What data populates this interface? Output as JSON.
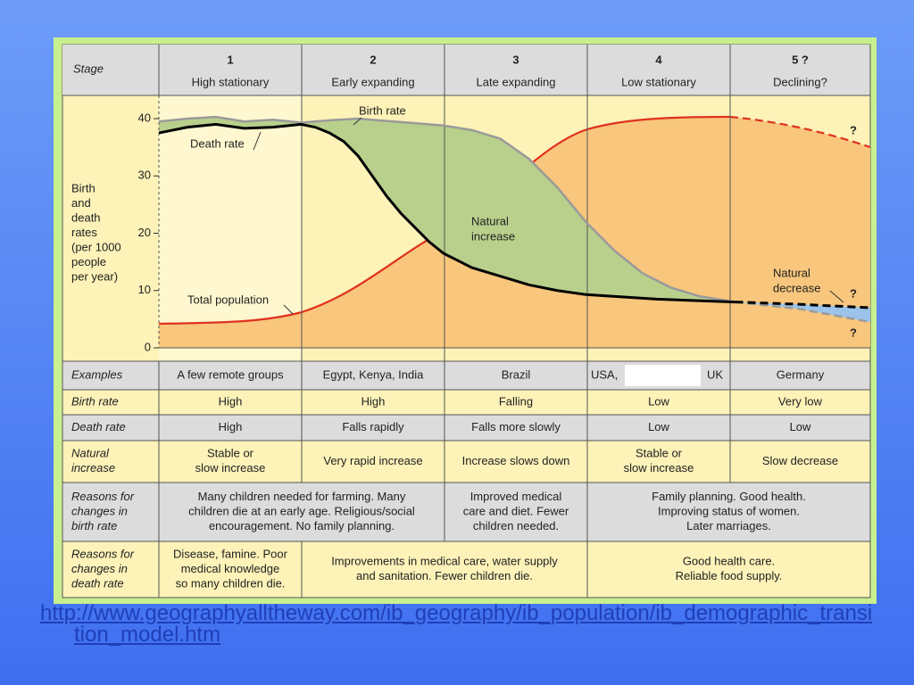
{
  "stage_header": {
    "label": "Stage",
    "stages": [
      {
        "number": "1",
        "name": "High stationary"
      },
      {
        "number": "2",
        "name": "Early expanding"
      },
      {
        "number": "3",
        "name": "Late expanding"
      },
      {
        "number": "4",
        "name": "Low stationary"
      },
      {
        "number": "5 ?",
        "name": "Declining?"
      }
    ]
  },
  "chart_data": {
    "type": "line",
    "y_label_lines": [
      "Birth",
      "and",
      "death",
      "rates",
      "(per 1000",
      "people",
      "per year)"
    ],
    "ylim": [
      0,
      40
    ],
    "yticks": [
      0,
      10,
      20,
      30,
      40
    ],
    "xlim": [
      0,
      5
    ],
    "series": [
      {
        "name": "Birth rate",
        "color": "#9a9a9a",
        "x": [
          0,
          0.2,
          0.4,
          0.6,
          0.8,
          1,
          1.2,
          1.4,
          1.6,
          1.8,
          2,
          2.2,
          2.4,
          2.6,
          2.8,
          3,
          3.2,
          3.4,
          3.6,
          3.8,
          4.05
        ],
        "values": [
          39.5,
          40,
          40.3,
          39.5,
          39.8,
          39.3,
          39.7,
          40,
          39.6,
          39.2,
          38.8,
          38,
          36.5,
          33,
          28,
          22,
          17,
          13,
          10.5,
          9,
          8
        ],
        "projection": {
          "x": [
            4.05,
            4.5,
            5
          ],
          "values": [
            8,
            6.8,
            4.5
          ]
        }
      },
      {
        "name": "Death rate",
        "color": "#000000",
        "x": [
          0,
          0.2,
          0.4,
          0.6,
          0.8,
          1,
          1.1,
          1.2,
          1.3,
          1.4,
          1.5,
          1.6,
          1.7,
          1.8,
          1.9,
          2,
          2.2,
          2.4,
          2.6,
          2.8,
          3,
          3.5,
          4.05
        ],
        "values": [
          37.5,
          38.5,
          39,
          38.3,
          38.5,
          39,
          38.5,
          37.5,
          36,
          33.5,
          30,
          26.5,
          23.5,
          21,
          18.5,
          16.5,
          14,
          12.5,
          11,
          10,
          9.3,
          8.5,
          8
        ],
        "projection": {
          "x": [
            4.05,
            4.5,
            5
          ],
          "values": [
            8,
            7.6,
            7
          ]
        }
      }
    ],
    "fill_color": "#b9d08c",
    "decrease_color": "#9cc4ea",
    "annotations": {
      "total_population": "Total population",
      "natural_increase": [
        "Natural",
        "increase"
      ],
      "natural_decrease": [
        "Natural",
        "decrease"
      ],
      "question_marks": [
        "?",
        "?",
        "?"
      ]
    }
  },
  "table": {
    "rows": [
      {
        "label": [
          "Examples"
        ],
        "shade": "gray",
        "cells": [
          {
            "span": 1,
            "lines": [
              "A few remote groups"
            ]
          },
          {
            "span": 1,
            "lines": [
              "Egypt, Kenya, India"
            ]
          },
          {
            "span": 1,
            "lines": [
              "Brazil"
            ]
          },
          {
            "span": 1,
            "lines": [
              "USA,",
              "UK"
            ],
            "redacted": true
          },
          {
            "span": 1,
            "lines": [
              "Germany"
            ]
          }
        ]
      },
      {
        "label": [
          "Birth rate"
        ],
        "shade": "yellow",
        "cells": [
          {
            "span": 1,
            "lines": [
              "High"
            ]
          },
          {
            "span": 1,
            "lines": [
              "High"
            ]
          },
          {
            "span": 1,
            "lines": [
              "Falling"
            ]
          },
          {
            "span": 1,
            "lines": [
              "Low"
            ]
          },
          {
            "span": 1,
            "lines": [
              "Very low"
            ]
          }
        ]
      },
      {
        "label": [
          "Death rate"
        ],
        "shade": "gray",
        "cells": [
          {
            "span": 1,
            "lines": [
              "High"
            ]
          },
          {
            "span": 1,
            "lines": [
              "Falls rapidly"
            ]
          },
          {
            "span": 1,
            "lines": [
              "Falls more slowly"
            ]
          },
          {
            "span": 1,
            "lines": [
              "Low"
            ]
          },
          {
            "span": 1,
            "lines": [
              "Low"
            ]
          }
        ]
      },
      {
        "label": [
          "Natural",
          "increase"
        ],
        "shade": "yellow",
        "cells": [
          {
            "span": 1,
            "lines": [
              "Stable or",
              "slow increase"
            ]
          },
          {
            "span": 1,
            "lines": [
              "Very rapid increase"
            ]
          },
          {
            "span": 1,
            "lines": [
              "Increase slows down"
            ]
          },
          {
            "span": 1,
            "lines": [
              "Stable or",
              "slow increase"
            ]
          },
          {
            "span": 1,
            "lines": [
              "Slow decrease"
            ]
          }
        ]
      },
      {
        "label": [
          "Reasons for",
          "changes in",
          "birth rate"
        ],
        "shade": "gray",
        "cells": [
          {
            "span": 2,
            "lines": [
              "Many children needed for farming. Many",
              "children die at an early age. Religious/social",
              "encouragement. No family planning."
            ]
          },
          {
            "span": 1,
            "lines": [
              "Improved medical",
              "care and diet. Fewer",
              "children needed."
            ]
          },
          {
            "span": 2,
            "lines": [
              "Family planning. Good health.",
              "Improving status of women.",
              "Later marriages."
            ]
          }
        ]
      },
      {
        "label": [
          "Reasons for",
          "changes in",
          "death rate"
        ],
        "shade": "yellow",
        "cells": [
          {
            "span": 1,
            "lines": [
              "Disease, famine. Poor",
              "medical knowledge",
              "so many children die."
            ]
          },
          {
            "span": 2,
            "lines": [
              "Improvements in medical care, water supply",
              "and sanitation. Fewer children die."
            ]
          },
          {
            "span": 2,
            "lines": [
              "Good health care.",
              "Reliable food supply."
            ]
          }
        ]
      }
    ]
  },
  "link": "http://www.geographyalltheway.com/ib_geography/ib_population/ib_demographic_transition_model.htm"
}
